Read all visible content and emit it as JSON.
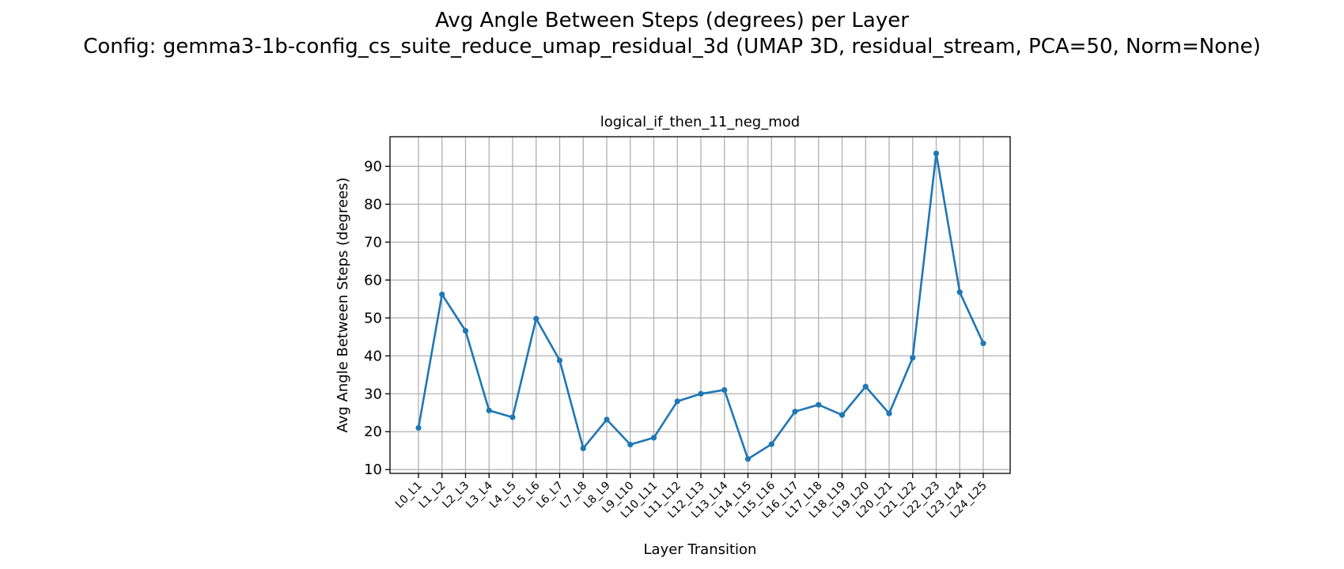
{
  "figure": {
    "suptitle_line1": "Avg Angle Between Steps (degrees) per Layer",
    "suptitle_line2": "Config: gemma3-1b-config_cs_suite_reduce_umap_residual_3d (UMAP 3D, residual_stream, PCA=50, Norm=None)"
  },
  "chart_data": {
    "type": "line",
    "title": "logical_if_then_11_neg_mod",
    "xlabel": "Layer Transition",
    "ylabel": "Avg Angle Between Steps (degrees)",
    "categories": [
      "L0_L1",
      "L1_L2",
      "L2_L3",
      "L3_L4",
      "L4_L5",
      "L5_L6",
      "L6_L7",
      "L7_L8",
      "L8_L9",
      "L9_L10",
      "L10_L11",
      "L11_L12",
      "L12_L13",
      "L13_L14",
      "L14_L15",
      "L15_L16",
      "L16_L17",
      "L17_L18",
      "L18_L19",
      "L19_L20",
      "L20_L21",
      "L21_L22",
      "L22_L23",
      "L23_L24",
      "L24_L25"
    ],
    "values": [
      21.0,
      56.2,
      46.6,
      25.6,
      23.8,
      49.8,
      38.8,
      15.6,
      23.2,
      16.6,
      18.4,
      28.0,
      30.0,
      31.0,
      12.8,
      16.7,
      25.3,
      27.1,
      24.4,
      31.9,
      24.8,
      39.5,
      93.4,
      56.8,
      43.3
    ],
    "yticks": [
      10,
      20,
      30,
      40,
      50,
      60,
      70,
      80,
      90
    ],
    "ylim": [
      9.0,
      97.8
    ],
    "grid": true,
    "color": "#1f77b4"
  }
}
